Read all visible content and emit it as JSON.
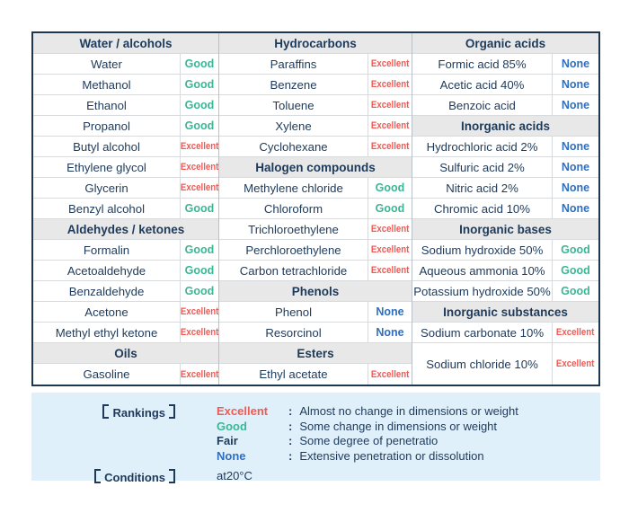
{
  "colors": {
    "excellent": "#f15953",
    "good": "#3ab795",
    "fair": "#1e3a5a",
    "none": "#2f6fbe",
    "text_navy": "#1e3a5a",
    "header_bg": "#e8e8e8",
    "table_border": "#1c3850",
    "legend_bg": "#e0f0fb"
  },
  "chart_data": {
    "type": "table",
    "columns": [
      {
        "rows": [
          {
            "type": "header",
            "label": "Water / alcohols"
          },
          {
            "type": "item",
            "name": "Water",
            "rating": "Good"
          },
          {
            "type": "item",
            "name": "Methanol",
            "rating": "Good"
          },
          {
            "type": "item",
            "name": "Ethanol",
            "rating": "Good"
          },
          {
            "type": "item",
            "name": "Propanol",
            "rating": "Good"
          },
          {
            "type": "item",
            "name": "Butyl alcohol",
            "rating": "Excellent"
          },
          {
            "type": "item",
            "name": "Ethylene glycol",
            "rating": "Excellent"
          },
          {
            "type": "item",
            "name": "Glycerin",
            "rating": "Excellent"
          },
          {
            "type": "item",
            "name": "Benzyl alcohol",
            "rating": "Good"
          },
          {
            "type": "header",
            "label": "Aldehydes / ketones"
          },
          {
            "type": "item",
            "name": "Formalin",
            "rating": "Good"
          },
          {
            "type": "item",
            "name": "Acetoaldehyde",
            "rating": "Good"
          },
          {
            "type": "item",
            "name": "Benzaldehyde",
            "rating": "Good"
          },
          {
            "type": "item",
            "name": "Acetone",
            "rating": "Excellent"
          },
          {
            "type": "item",
            "name": "Methyl ethyl ketone",
            "rating": "Excellent"
          },
          {
            "type": "header",
            "label": "Oils"
          },
          {
            "type": "item",
            "name": "Gasoline",
            "rating": "Excellent"
          }
        ]
      },
      {
        "rows": [
          {
            "type": "header",
            "label": "Hydrocarbons"
          },
          {
            "type": "item",
            "name": "Paraffins",
            "rating": "Excellent"
          },
          {
            "type": "item",
            "name": "Benzene",
            "rating": "Excellent"
          },
          {
            "type": "item",
            "name": "Toluene",
            "rating": "Excellent"
          },
          {
            "type": "item",
            "name": "Xylene",
            "rating": "Excellent"
          },
          {
            "type": "item",
            "name": "Cyclohexane",
            "rating": "Excellent"
          },
          {
            "type": "header",
            "label": "Halogen compounds"
          },
          {
            "type": "item",
            "name": "Methylene chloride",
            "rating": "Good"
          },
          {
            "type": "item",
            "name": "Chloroform",
            "rating": "Good"
          },
          {
            "type": "item",
            "name": "Trichloroethylene",
            "rating": "Excellent"
          },
          {
            "type": "item",
            "name": "Perchloroethylene",
            "rating": "Excellent"
          },
          {
            "type": "item",
            "name": "Carbon tetrachloride",
            "rating": "Excellent"
          },
          {
            "type": "header",
            "label": "Phenols"
          },
          {
            "type": "item",
            "name": "Phenol",
            "rating": "None"
          },
          {
            "type": "item",
            "name": "Resorcinol",
            "rating": "None"
          },
          {
            "type": "header",
            "label": "Esters"
          },
          {
            "type": "item",
            "name": "Ethyl acetate",
            "rating": "Excellent"
          }
        ]
      },
      {
        "rows": [
          {
            "type": "header",
            "label": "Organic acids"
          },
          {
            "type": "item",
            "name": "Formic acid 85%",
            "rating": "None"
          },
          {
            "type": "item",
            "name": "Acetic acid 40%",
            "rating": "None"
          },
          {
            "type": "item",
            "name": "Benzoic acid",
            "rating": "None"
          },
          {
            "type": "header",
            "label": "Inorganic acids"
          },
          {
            "type": "item",
            "name": "Hydrochloric acid 2%",
            "rating": "None"
          },
          {
            "type": "item",
            "name": "Sulfuric acid 2%",
            "rating": "None"
          },
          {
            "type": "item",
            "name": "Nitric acid 2%",
            "rating": "None"
          },
          {
            "type": "item",
            "name": "Chromic acid 10%",
            "rating": "None"
          },
          {
            "type": "header",
            "label": "Inorganic bases"
          },
          {
            "type": "item",
            "name": "Sodium hydroxide 50%",
            "rating": "Good"
          },
          {
            "type": "item",
            "name": "Aqueous ammonia 10%",
            "rating": "Good"
          },
          {
            "type": "item",
            "name": "Potassium hydroxide 50%",
            "rating": "Good"
          },
          {
            "type": "header",
            "label": "Inorganic substances"
          },
          {
            "type": "item",
            "name": "Sodium carbonate 10%",
            "rating": "Excellent"
          },
          {
            "type": "item",
            "name": "Sodium chloride 10%",
            "rating": "Excellent",
            "span": 2
          }
        ]
      }
    ]
  },
  "legend": {
    "rankings_label": "Rankings",
    "separator": ":",
    "entries": [
      {
        "rating": "Excellent",
        "description": "Almost no change in dimensions or weight"
      },
      {
        "rating": "Good",
        "description": "Some change in dimensions or weight"
      },
      {
        "rating": "Fair",
        "description": "Some degree of penetratio"
      },
      {
        "rating": "None",
        "description": "Extensive penetration or dissolution"
      }
    ],
    "conditions_label": "Conditions",
    "conditions_value": "at20°C"
  }
}
